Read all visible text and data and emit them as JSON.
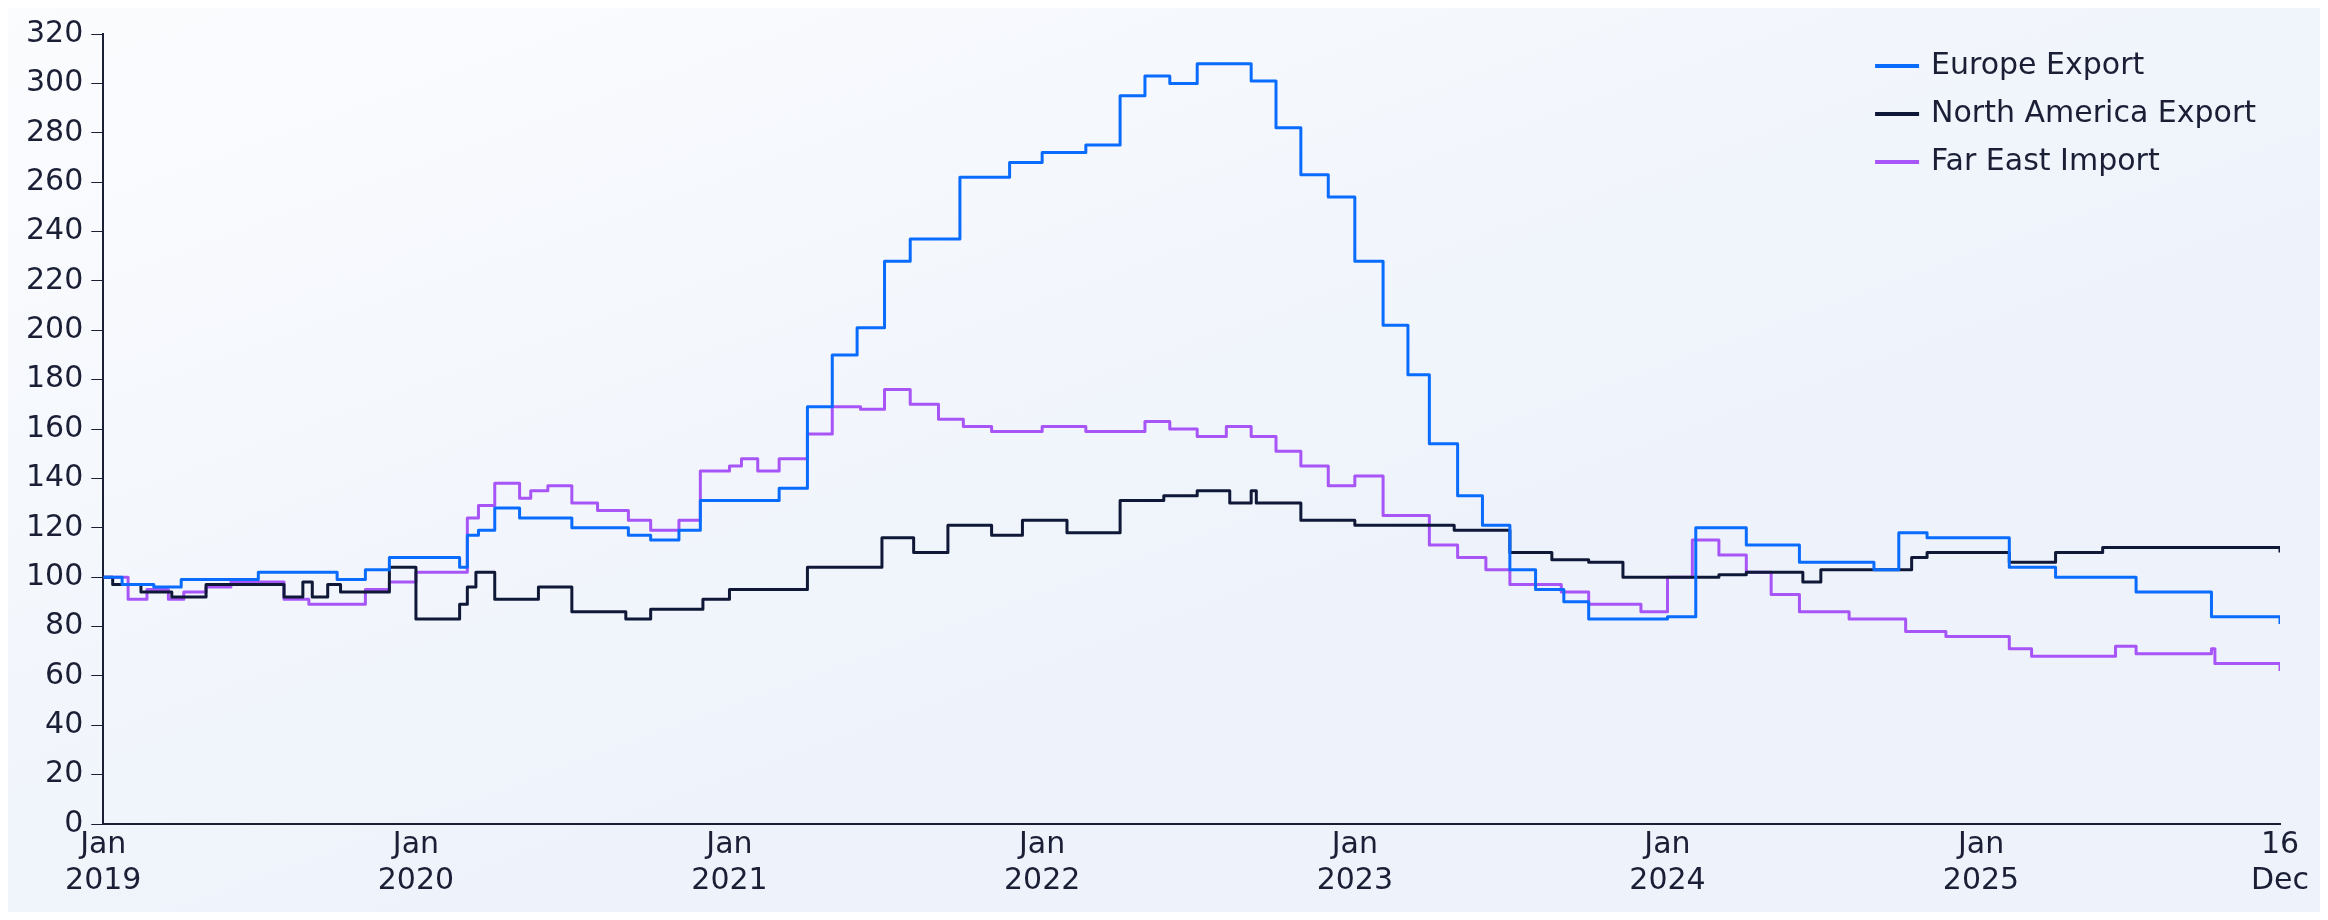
{
  "chart_data": {
    "type": "step",
    "xlim": [
      "2019-01-01",
      "2025-12-16"
    ],
    "ylim": [
      0,
      320
    ],
    "yticks": [
      0,
      20,
      40,
      60,
      80,
      100,
      120,
      140,
      160,
      180,
      200,
      220,
      240,
      260,
      280,
      300,
      320
    ],
    "xticks": [
      {
        "value": "2019-01-01",
        "label": "Jan\n2019"
      },
      {
        "value": "2020-01-01",
        "label": "Jan\n2020"
      },
      {
        "value": "2021-01-01",
        "label": "Jan\n2021"
      },
      {
        "value": "2022-01-01",
        "label": "Jan\n2022"
      },
      {
        "value": "2023-01-01",
        "label": "Jan\n2023"
      },
      {
        "value": "2024-01-01",
        "label": "Jan\n2024"
      },
      {
        "value": "2025-01-01",
        "label": "Jan\n2025"
      },
      {
        "value": "2025-12-16",
        "label": "16\nDec"
      }
    ],
    "grid": false,
    "legend": "top right",
    "marker": "none",
    "line_style": "solid",
    "series": [
      {
        "name": "Europe Export",
        "color": "#0a6cff",
        "x": [
          "2019-01-01",
          "2019-01-23",
          "2019-03-01",
          "2019-04-02",
          "2019-07-01",
          "2019-10-01",
          "2019-11-03",
          "2019-12-01",
          "2020-02-21",
          "2020-03-01",
          "2020-03-14",
          "2020-04-02",
          "2020-05-01",
          "2020-07-01",
          "2020-09-05",
          "2020-10-01",
          "2020-11-03",
          "2020-11-28",
          "2021-01-01",
          "2021-02-28",
          "2021-04-02",
          "2021-05-01",
          "2021-05-30",
          "2021-07-01",
          "2021-07-31",
          "2021-09-27",
          "2021-11-24",
          "2022-01-01",
          "2022-02-21",
          "2022-04-02",
          "2022-05-01",
          "2022-05-30",
          "2022-07-01",
          "2022-09-02",
          "2022-10-01",
          "2022-10-30",
          "2022-12-01",
          "2023-01-01",
          "2023-02-03",
          "2023-03-04",
          "2023-03-29",
          "2023-05-01",
          "2023-05-30",
          "2023-07-01",
          "2023-07-31",
          "2023-09-02",
          "2023-10-01",
          "2024-01-01",
          "2024-02-03",
          "2024-04-02",
          "2024-06-03",
          "2024-08-29",
          "2024-09-27",
          "2024-10-30",
          "2025-02-03",
          "2025-03-29",
          "2025-07-01",
          "2025-09-27",
          "2025-12-16"
        ],
        "values": [
          100,
          97,
          96,
          99,
          102,
          99,
          103,
          108,
          104,
          117,
          119,
          128,
          124,
          120,
          117,
          115,
          119,
          131,
          131,
          136,
          169,
          190,
          201,
          228,
          237,
          262,
          268,
          272,
          275,
          295,
          303,
          300,
          308,
          301,
          282,
          263,
          254,
          228,
          202,
          182,
          154,
          133,
          121,
          103,
          95,
          90,
          83,
          84,
          120,
          113,
          106,
          103,
          118,
          116,
          104,
          100,
          94,
          84,
          81
        ]
      },
      {
        "name": "North America Export",
        "color": "#101838",
        "x": [
          "2019-01-01",
          "2019-01-12",
          "2019-02-14",
          "2019-03-22",
          "2019-05-01",
          "2019-07-31",
          "2019-08-22",
          "2019-09-02",
          "2019-09-20",
          "2019-10-05",
          "2019-12-01",
          "2020-01-01",
          "2020-02-21",
          "2020-03-01",
          "2020-03-11",
          "2020-04-02",
          "2020-05-23",
          "2020-07-01",
          "2020-09-02",
          "2020-10-01",
          "2020-12-01",
          "2021-01-01",
          "2021-04-02",
          "2021-06-28",
          "2021-08-04",
          "2021-09-13",
          "2021-11-03",
          "2021-12-09",
          "2022-01-30",
          "2022-04-02",
          "2022-05-23",
          "2022-07-01",
          "2022-08-08",
          "2022-09-02",
          "2022-09-08",
          "2022-10-30",
          "2023-01-01",
          "2023-04-27",
          "2023-07-01",
          "2023-08-19",
          "2023-10-01",
          "2023-11-10",
          "2024-03-01",
          "2024-04-02",
          "2024-06-07",
          "2024-06-28",
          "2024-10-12",
          "2024-10-30",
          "2025-02-03",
          "2025-03-29",
          "2025-05-23",
          "2025-07-20",
          "2025-12-16"
        ],
        "values": [
          100,
          97,
          94,
          92,
          97,
          92,
          98,
          92,
          97,
          94,
          104,
          83,
          89,
          96,
          102,
          91,
          96,
          86,
          83,
          87,
          91,
          95,
          104,
          116,
          110,
          121,
          117,
          123,
          118,
          131,
          133,
          135,
          130,
          135,
          130,
          123,
          121,
          119,
          110,
          107,
          106,
          100,
          101,
          102,
          98,
          103,
          108,
          110,
          106,
          110,
          112,
          112,
          110
        ]
      },
      {
        "name": "Far East Import",
        "color": "#a855f7",
        "x": [
          "2019-01-01",
          "2019-01-30",
          "2019-02-21",
          "2019-03-18",
          "2019-04-05",
          "2019-05-01",
          "2019-05-30",
          "2019-07-31",
          "2019-08-29",
          "2019-11-03",
          "2019-12-01",
          "2020-01-01",
          "2020-03-01",
          "2020-03-14",
          "2020-04-02",
          "2020-05-01",
          "2020-05-14",
          "2020-06-03",
          "2020-07-01",
          "2020-07-31",
          "2020-09-05",
          "2020-10-01",
          "2020-11-03",
          "2020-11-28",
          "2021-01-01",
          "2021-01-15",
          "2021-02-03",
          "2021-02-28",
          "2021-04-02",
          "2021-05-01",
          "2021-06-03",
          "2021-07-01",
          "2021-07-31",
          "2021-09-02",
          "2021-10-01",
          "2021-11-03",
          "2022-01-01",
          "2022-02-21",
          "2022-05-01",
          "2022-05-30",
          "2022-07-01",
          "2022-08-04",
          "2022-09-02",
          "2022-10-01",
          "2022-10-30",
          "2022-12-01",
          "2023-01-01",
          "2023-02-03",
          "2023-03-29",
          "2023-05-01",
          "2023-06-03",
          "2023-07-01",
          "2023-08-30",
          "2023-10-01",
          "2023-12-01",
          "2024-01-01",
          "2024-01-30",
          "2024-03-01",
          "2024-04-02",
          "2024-05-01",
          "2024-06-03",
          "2024-07-31",
          "2024-10-05",
          "2024-11-21",
          "2025-02-03",
          "2025-03-01",
          "2025-05-23",
          "2025-06-07",
          "2025-07-01",
          "2025-09-27",
          "2025-10-01",
          "2025-12-16"
        ],
        "values": [
          100,
          91,
          95,
          91,
          94,
          96,
          98,
          91,
          89,
          95,
          98,
          102,
          124,
          129,
          138,
          132,
          135,
          137,
          130,
          127,
          123,
          119,
          123,
          143,
          145,
          148,
          143,
          148,
          158,
          169,
          168,
          176,
          170,
          164,
          161,
          159,
          161,
          159,
          163,
          160,
          157,
          161,
          157,
          151,
          145,
          137,
          141,
          125,
          113,
          108,
          103,
          97,
          94,
          89,
          86,
          100,
          115,
          109,
          102,
          93,
          86,
          83,
          78,
          76,
          71,
          68,
          68,
          72,
          69,
          71,
          65,
          62
        ]
      }
    ]
  }
}
